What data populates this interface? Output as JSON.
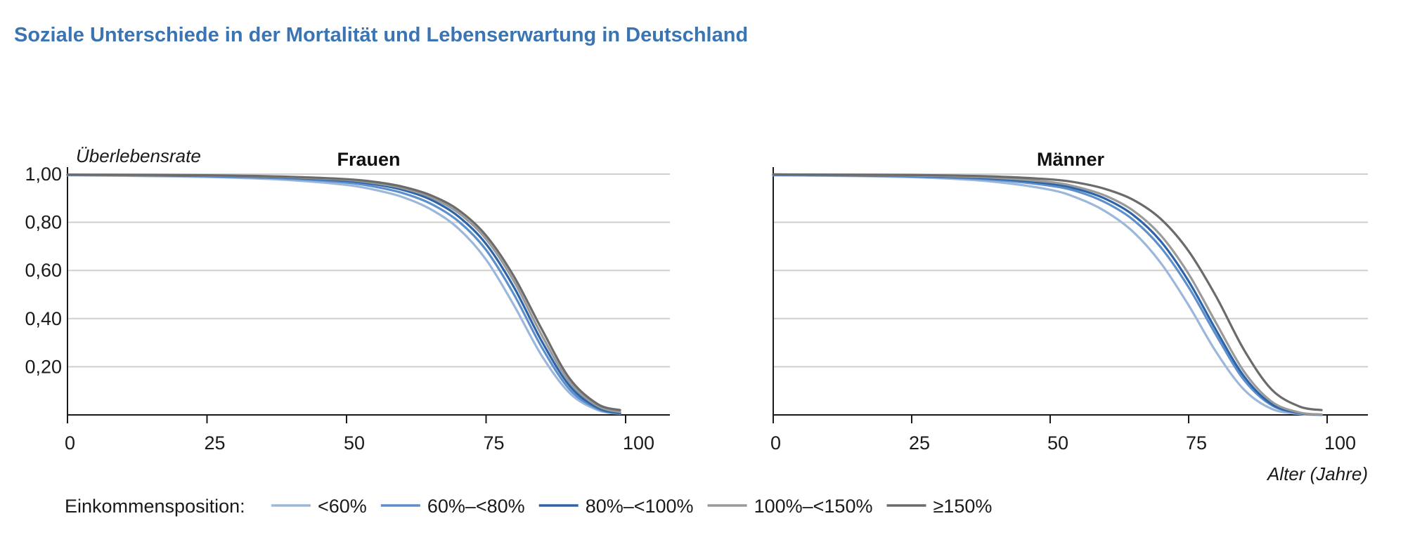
{
  "header": {
    "title": "Soziale Unterschiede in der Mortalität und Lebenserwartung in Deutschland"
  },
  "chart_data": [
    {
      "type": "line",
      "title": "Frauen",
      "ylabel": "Überlebensrate",
      "xlabel": "",
      "xlim": [
        0,
        100
      ],
      "ylim": [
        0,
        1
      ],
      "xticks": [
        0,
        25,
        50,
        75,
        100
      ],
      "xtick_labels": [
        "0",
        "25",
        "50",
        "75",
        "100"
      ],
      "yticks": [
        0.2,
        0.4,
        0.6,
        0.8,
        1.0
      ],
      "ytick_labels": [
        "0,20",
        "0,40",
        "0,60",
        "0,80",
        "1,00"
      ],
      "grid": true,
      "x": [
        0,
        10,
        20,
        30,
        40,
        50,
        55,
        60,
        65,
        70,
        75,
        80,
        85,
        90,
        95,
        99
      ],
      "series": [
        {
          "name": "<60%",
          "color": "#9bb7dc",
          "values": [
            0.995,
            0.993,
            0.99,
            0.985,
            0.975,
            0.955,
            0.935,
            0.905,
            0.855,
            0.775,
            0.645,
            0.455,
            0.245,
            0.09,
            0.02,
            0.005
          ]
        },
        {
          "name": "60%–<80%",
          "color": "#5c8fcc",
          "values": [
            0.996,
            0.995,
            0.993,
            0.989,
            0.981,
            0.965,
            0.948,
            0.922,
            0.878,
            0.805,
            0.685,
            0.5,
            0.28,
            0.105,
            0.025,
            0.006
          ]
        },
        {
          "name": "80%–<100%",
          "color": "#2d64a8",
          "values": [
            0.997,
            0.996,
            0.994,
            0.991,
            0.985,
            0.972,
            0.958,
            0.935,
            0.895,
            0.825,
            0.71,
            0.53,
            0.305,
            0.12,
            0.03,
            0.008
          ]
        },
        {
          "name": "100%–<150%",
          "color": "#9a9a9a",
          "values": [
            0.997,
            0.996,
            0.995,
            0.992,
            0.987,
            0.976,
            0.963,
            0.942,
            0.905,
            0.84,
            0.73,
            0.555,
            0.33,
            0.135,
            0.037,
            0.012
          ]
        },
        {
          "name": "≥150%",
          "color": "#6b6b6b",
          "values": [
            0.998,
            0.997,
            0.996,
            0.994,
            0.989,
            0.979,
            0.968,
            0.948,
            0.913,
            0.852,
            0.745,
            0.575,
            0.355,
            0.15,
            0.045,
            0.02
          ]
        }
      ]
    },
    {
      "type": "line",
      "title": "Männer",
      "ylabel": "",
      "xlabel": "Alter (Jahre)",
      "xlim": [
        0,
        100
      ],
      "ylim": [
        0,
        1
      ],
      "xticks": [
        0,
        25,
        50,
        75,
        100
      ],
      "xtick_labels": [
        "0",
        "25",
        "50",
        "75",
        "100"
      ],
      "yticks": [
        0.2,
        0.4,
        0.6,
        0.8,
        1.0
      ],
      "grid": true,
      "x": [
        0,
        10,
        20,
        30,
        40,
        50,
        55,
        60,
        65,
        70,
        75,
        80,
        85,
        90,
        95,
        99
      ],
      "series": [
        {
          "name": "<60%",
          "color": "#9bb7dc",
          "values": [
            0.995,
            0.993,
            0.99,
            0.983,
            0.968,
            0.935,
            0.9,
            0.845,
            0.76,
            0.63,
            0.455,
            0.26,
            0.105,
            0.025,
            0.004,
            0.0
          ]
        },
        {
          "name": "60%–<80%",
          "color": "#5c8fcc",
          "values": [
            0.996,
            0.995,
            0.992,
            0.987,
            0.976,
            0.952,
            0.927,
            0.882,
            0.81,
            0.695,
            0.53,
            0.33,
            0.145,
            0.04,
            0.007,
            0.001
          ]
        },
        {
          "name": "80%–<100%",
          "color": "#2d64a8",
          "values": [
            0.997,
            0.996,
            0.994,
            0.99,
            0.981,
            0.96,
            0.937,
            0.897,
            0.83,
            0.72,
            0.555,
            0.35,
            0.16,
            0.045,
            0.008,
            0.001
          ]
        },
        {
          "name": "100%–<150%",
          "color": "#9a9a9a",
          "values": [
            0.998,
            0.997,
            0.995,
            0.992,
            0.985,
            0.967,
            0.946,
            0.91,
            0.848,
            0.745,
            0.585,
            0.38,
            0.18,
            0.055,
            0.01,
            0.002
          ]
        },
        {
          "name": "≥150%",
          "color": "#6b6b6b",
          "values": [
            0.999,
            0.998,
            0.997,
            0.995,
            0.99,
            0.978,
            0.964,
            0.938,
            0.893,
            0.813,
            0.68,
            0.49,
            0.27,
            0.105,
            0.035,
            0.02
          ]
        }
      ]
    }
  ],
  "legend": {
    "title": "Einkommensposition:",
    "items": [
      {
        "label": "<60%",
        "color": "#9bb7dc"
      },
      {
        "label": "60%–<80%",
        "color": "#5c8fcc"
      },
      {
        "label": "80%–<100%",
        "color": "#2d64a8"
      },
      {
        "label": "100%–<150%",
        "color": "#9a9a9a"
      },
      {
        "label": "≥150%",
        "color": "#6b6b6b"
      }
    ]
  }
}
